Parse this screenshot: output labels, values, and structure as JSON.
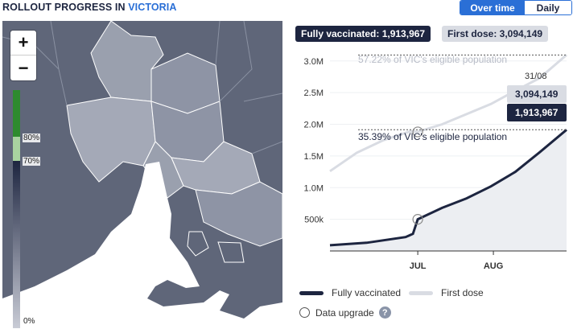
{
  "header": {
    "title_prefix": "ROLLOUT PROGRESS IN",
    "location": "VICTORIA"
  },
  "view_toggle": {
    "active": "Over time",
    "inactive": "Daily"
  },
  "map": {
    "zoom_in": "+",
    "zoom_out": "−",
    "legend": {
      "top_label": "80%",
      "mid_label": "70%",
      "bottom_label": "0%"
    },
    "colors": {
      "land": "#5f6679",
      "water": "#ffffff",
      "region_light": "#a4a9b7",
      "region_mid": "#8e94a5",
      "border": "#ffffff"
    }
  },
  "badges": {
    "fully": "Fully vaccinated: 1,913,967",
    "first": "First dose: 3,094,149"
  },
  "chart_data": {
    "type": "line",
    "title": "",
    "xlabel": "",
    "ylabel": "",
    "y_ticks": [
      "500k",
      "1.0M",
      "1.5M",
      "2.0M",
      "2.5M",
      "3.0M"
    ],
    "x_ticks": [
      "JUL",
      "AUG"
    ],
    "ylim": [
      0,
      3200000
    ],
    "xlim": [
      "2021-05-26",
      "2021-08-31"
    ],
    "series": [
      {
        "name": "First dose",
        "color": "#d9dce3",
        "x": [
          "2021-05-26",
          "2021-06-06",
          "2021-06-17",
          "2021-06-28",
          "2021-07-01",
          "2021-07-11",
          "2021-07-21",
          "2021-07-31",
          "2021-08-10",
          "2021-08-20",
          "2021-08-31"
        ],
        "y": [
          1260000,
          1550000,
          1750000,
          1890000,
          1880000,
          2000000,
          2160000,
          2320000,
          2530000,
          2730000,
          3094149
        ]
      },
      {
        "name": "Fully vaccinated",
        "color": "#1d2540",
        "x": [
          "2021-05-26",
          "2021-06-10",
          "2021-06-26",
          "2021-06-29",
          "2021-07-01",
          "2021-07-11",
          "2021-07-21",
          "2021-07-31",
          "2021-08-10",
          "2021-08-20",
          "2021-08-31"
        ],
        "y": [
          90000,
          130000,
          220000,
          270000,
          500000,
          680000,
          830000,
          1020000,
          1250000,
          1560000,
          1913967
        ]
      }
    ],
    "annotations": {
      "first_pct": "57.22% of VIC's eligible population",
      "full_pct": "35.39% of VIC's eligible population",
      "date_label": "31/08",
      "first_value": "3,094,149",
      "full_value": "1,913,967"
    },
    "reference_lines": [
      3094149,
      1913967
    ],
    "markers": [
      {
        "x": "2021-07-01",
        "y": 500000
      },
      {
        "x": "2021-07-01",
        "y": 1880000
      }
    ]
  },
  "legend": {
    "fully": "Fully vaccinated",
    "first": "First dose"
  },
  "upgrade": {
    "label": "Data upgrade",
    "help": "?"
  }
}
